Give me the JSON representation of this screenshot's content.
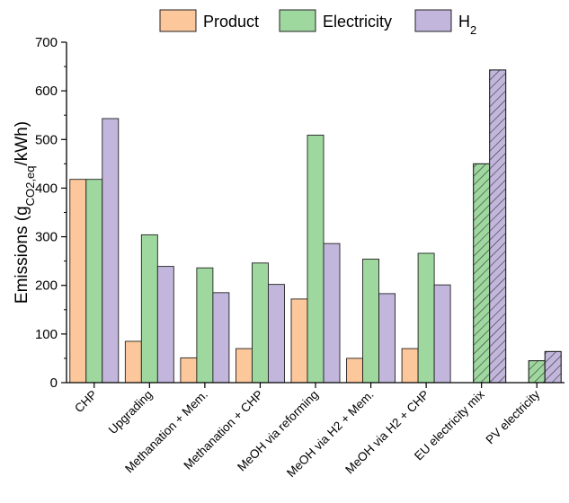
{
  "chart_data": {
    "type": "bar",
    "title": "",
    "xlabel": "",
    "ylabel": {
      "prefix": "Emissions (g",
      "subscript": "CO2,eq",
      "suffix": "/kWh)"
    },
    "ylim": [
      0,
      700
    ],
    "yticks": [
      0,
      100,
      200,
      300,
      400,
      500,
      600,
      700
    ],
    "legend_position": "top",
    "grid": false,
    "categories": [
      "CHP",
      "Upgrading",
      "Methanation + Mem.",
      "Methanation + CHP",
      "MeOH via reforming",
      "MeOH via H2 + Mem.",
      "MeOH via H2 + CHP",
      "EU electricity mix",
      "PV electricity"
    ],
    "series": [
      {
        "name": "Product",
        "color": "#fcc79b",
        "values": [
          418,
          85,
          51,
          70,
          172,
          50,
          70,
          null,
          null
        ]
      },
      {
        "name": "Electricity",
        "color": "#9fd89f",
        "values": [
          418,
          304,
          236,
          246,
          509,
          254,
          266,
          450,
          45
        ]
      },
      {
        "name": "H2",
        "color": "#c2b6dc",
        "values": [
          543,
          239,
          185,
          202,
          286,
          183,
          201,
          643,
          64
        ]
      }
    ],
    "legend_labels": [
      {
        "main": "Product",
        "sub": ""
      },
      {
        "main": "Electricity",
        "sub": ""
      },
      {
        "main": "H",
        "sub": "2"
      }
    ],
    "hatched_categories": [
      "EU electricity mix",
      "PV electricity"
    ]
  }
}
